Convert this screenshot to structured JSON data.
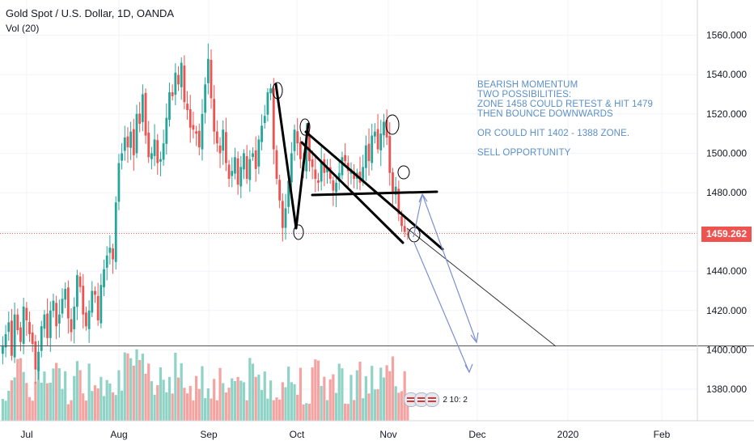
{
  "header": {
    "symbol": "Gold Spot / U.S. Dollar, 1D, OANDA",
    "volume_label": "Vol (20)"
  },
  "chart_data": {
    "type": "candlestick",
    "price_axis": {
      "ticks": [
        1380,
        1400,
        1420,
        1440,
        1460,
        1480,
        1500,
        1520,
        1540,
        1560
      ],
      "tick_labels": [
        "1380.000",
        "1400.000",
        "1420.000",
        "1440.000",
        "",
        "1480.000",
        "1500.000",
        "1520.000",
        "1540.000",
        "1560.000"
      ],
      "range": [
        1360,
        1575
      ]
    },
    "time_axis": {
      "labels": [
        "Jul",
        "Aug",
        "Sep",
        "Oct",
        "Nov",
        "Dec",
        "2020",
        "Feb"
      ]
    },
    "current_price": {
      "value": 1459.262,
      "label": "1459.262",
      "color": "#ef5350"
    },
    "up_color": "#26a69a",
    "down_color": "#ef5350",
    "volume_up_color": "#8fd3c6",
    "volume_down_color": "#f4a3a1",
    "closes": [
      1402,
      1408,
      1414,
      1397,
      1418,
      1410,
      1404,
      1422,
      1415,
      1408,
      1403,
      1390,
      1399,
      1412,
      1418,
      1406,
      1420,
      1425,
      1412,
      1418,
      1426,
      1431,
      1416,
      1409,
      1422,
      1438,
      1432,
      1418,
      1412,
      1420,
      1430,
      1428,
      1415,
      1433,
      1441,
      1448,
      1452,
      1446,
      1475,
      1495,
      1500,
      1508,
      1503,
      1511,
      1499,
      1520,
      1515,
      1530,
      1509,
      1498,
      1500,
      1507,
      1495,
      1497,
      1505,
      1518,
      1531,
      1529,
      1541,
      1535,
      1546,
      1526,
      1522,
      1513,
      1512,
      1510,
      1503,
      1520,
      1535,
      1548,
      1528,
      1511,
      1505,
      1500,
      1512,
      1495,
      1487,
      1491,
      1498,
      1484,
      1493,
      1500,
      1487,
      1497,
      1500,
      1492,
      1507,
      1514,
      1519,
      1531,
      1533,
      1502,
      1487,
      1476,
      1462,
      1472,
      1486,
      1500,
      1512,
      1505,
      1497,
      1491,
      1509,
      1496,
      1493,
      1487,
      1485,
      1496,
      1490,
      1493,
      1487,
      1481,
      1485,
      1490,
      1498,
      1496,
      1491,
      1492,
      1487,
      1490,
      1485,
      1493,
      1504,
      1496,
      1509,
      1511,
      1502,
      1510,
      1516,
      1508,
      1490,
      1480,
      1483,
      1469,
      1463,
      1460,
      1459
    ],
    "volume_mentioned": true
  },
  "annotations": {
    "text_lines": [
      "BEARISH MOMENTUM",
      "TWO POSSIBILITIES:",
      "ZONE 1458 COULD RETEST & HIT 1479",
      "THEN BOUNCE DOWNWARDS",
      "",
      "OR COULD HIT 1402 - 1388 ZONE.",
      "",
      "SELL OPPORTUNITY"
    ],
    "horizontal_level": 1402,
    "resistance_level": 1480,
    "line_color": "#000000",
    "arrow_color": "#7b8fd1"
  },
  "events": {
    "label": "2  10: 2"
  }
}
